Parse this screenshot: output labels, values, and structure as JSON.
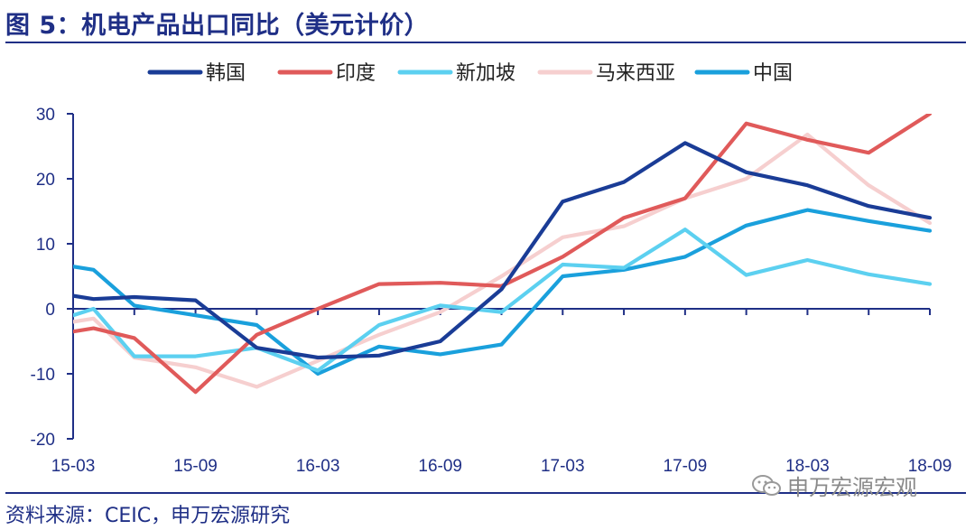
{
  "header": {
    "title": "图 5：机电产品出口同比（美元计价）"
  },
  "footer": {
    "source": "资料来源：CEIC，申万宏源研究"
  },
  "watermark": {
    "text": "申万宏源宏观"
  },
  "chart_data": {
    "type": "line",
    "title": "",
    "xlabel": "",
    "ylabel": "",
    "ylim": [
      -20,
      30
    ],
    "yticks": [
      -20,
      -10,
      0,
      10,
      20,
      30
    ],
    "xticks": [
      "15-03",
      "15-09",
      "16-03",
      "16-09",
      "17-03",
      "17-09",
      "18-03",
      "18-09"
    ],
    "legend_position": "top",
    "grid": false,
    "x": [
      "15-03",
      "15-04",
      "15-06",
      "15-09",
      "15-12",
      "16-03",
      "16-06",
      "16-09",
      "16-12",
      "17-03",
      "17-06",
      "17-09",
      "17-12",
      "18-03",
      "18-06",
      "18-09"
    ],
    "series": [
      {
        "name": "韩国",
        "color": "#1a3c96",
        "values": [
          2.0,
          1.5,
          1.8,
          1.3,
          -6.0,
          -7.5,
          -7.2,
          -5.0,
          3.0,
          16.5,
          19.5,
          25.5,
          21.0,
          19.0,
          15.8,
          14.0
        ]
      },
      {
        "name": "印度",
        "color": "#e05a5a",
        "values": [
          -3.5,
          -3.0,
          -4.5,
          -12.8,
          -4.0,
          0.0,
          3.8,
          4.0,
          3.5,
          8.0,
          14.0,
          17.0,
          28.5,
          26.0,
          24.0,
          30.0
        ]
      },
      {
        "name": "新加坡",
        "color": "#5cd0f0",
        "values": [
          -1.0,
          0.0,
          -7.3,
          -7.3,
          -6.0,
          -9.5,
          -2.5,
          0.5,
          -0.5,
          6.8,
          6.3,
          12.2,
          5.2,
          7.5,
          5.3,
          3.8
        ]
      },
      {
        "name": "马来西亚",
        "color": "#f6cfcf",
        "values": [
          -2.0,
          -1.5,
          -7.5,
          -9.0,
          -12.0,
          -8.0,
          -4.0,
          -0.5,
          5.0,
          11.0,
          12.7,
          17.0,
          20.0,
          26.8,
          19.0,
          13.2
        ]
      },
      {
        "name": "中国",
        "color": "#1aa0dc",
        "values": [
          6.5,
          6.0,
          0.5,
          -1.0,
          -2.5,
          -10.0,
          -5.8,
          -7.0,
          -5.5,
          5.0,
          6.0,
          8.0,
          12.8,
          15.2,
          13.5,
          12.0
        ]
      }
    ]
  }
}
